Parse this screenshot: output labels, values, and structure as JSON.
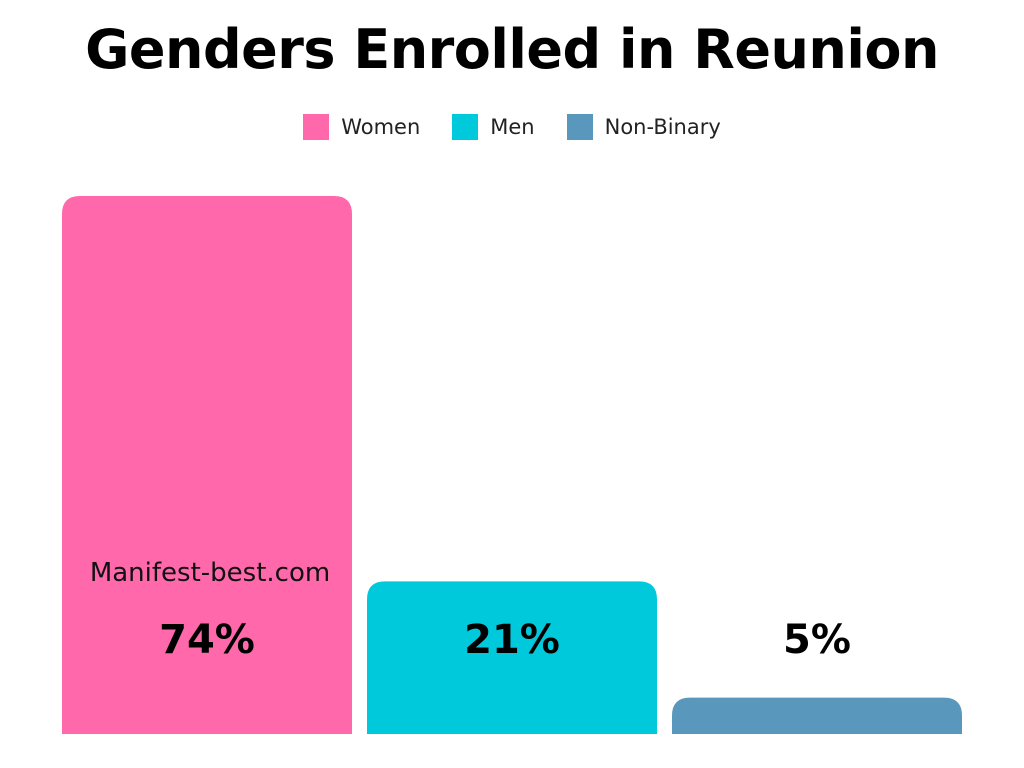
{
  "chart_data": {
    "type": "bar",
    "title": "Genders Enrolled in Reunion",
    "categories": [
      "Women",
      "Men",
      "Non-Binary"
    ],
    "values": [
      74,
      21,
      5
    ],
    "value_labels": [
      "74%",
      "21%",
      "5%"
    ],
    "unit": "%",
    "colors": [
      "#ff69ac",
      "#00c9dc",
      "#5a97bd"
    ],
    "legend": {
      "placement": "top-center",
      "entries": [
        "Women",
        "Men",
        "Non-Binary"
      ]
    },
    "grid": false,
    "ylim": [
      0,
      74
    ]
  },
  "watermark": "Manifest-best.com"
}
